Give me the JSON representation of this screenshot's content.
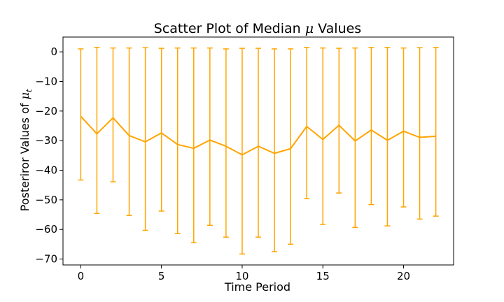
{
  "chart_data": {
    "type": "line",
    "title": "Scatter Plot of Median ",
    "title_symbol": "μ",
    "title_suffix": " Values",
    "xlabel": "Time Period",
    "ylabel": "Posteriror Values of ",
    "ylabel_symbol": "μ",
    "ylabel_subscript": "t",
    "xlim": [
      -1.1,
      23.1
    ],
    "ylim": [
      -72,
      5
    ],
    "xticks": [
      0,
      5,
      10,
      15,
      20
    ],
    "yticks": [
      0,
      -10,
      -20,
      -30,
      -40,
      -50,
      -60,
      -70
    ],
    "color": "#ffa500",
    "grid": false,
    "series": [
      {
        "x": [
          0,
          1,
          2,
          3,
          4,
          5,
          6,
          7,
          8,
          9,
          10,
          11,
          12,
          13,
          14,
          15,
          16,
          17,
          18,
          19,
          20,
          21,
          22
        ],
        "median": [
          -21.8,
          -27.7,
          -22.3,
          -28.3,
          -30.4,
          -27.4,
          -31.3,
          -32.6,
          -29.8,
          -31.9,
          -34.8,
          -31.9,
          -34.3,
          -32.7,
          -25.2,
          -29.6,
          -24.8,
          -30.1,
          -26.4,
          -29.9,
          -26.8,
          -28.9,
          -28.5
        ],
        "upper": [
          1.0,
          1.5,
          1.3,
          1.3,
          1.4,
          1.2,
          1.3,
          1.3,
          1.3,
          1.0,
          1.2,
          1.2,
          1.0,
          1.0,
          1.5,
          1.3,
          1.2,
          1.3,
          1.5,
          1.5,
          1.3,
          1.4,
          1.5
        ],
        "lower": [
          -43.3,
          -54.6,
          -43.9,
          -55.3,
          -60.3,
          -53.8,
          -61.4,
          -64.5,
          -58.6,
          -62.6,
          -68.3,
          -62.6,
          -67.5,
          -65.0,
          -49.6,
          -58.3,
          -47.7,
          -59.3,
          -51.6,
          -58.8,
          -52.4,
          -56.5,
          -55.5
        ]
      }
    ]
  }
}
